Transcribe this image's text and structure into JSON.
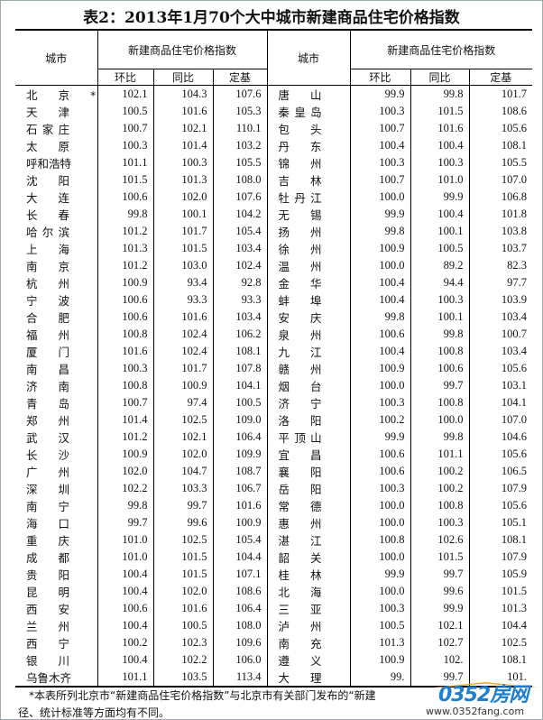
{
  "title": "表2：2013年1月70个大中城市新建商品住宅价格指数",
  "header": {
    "city": "城市",
    "group": "新建商品住宅价格指数",
    "mom": "环比",
    "yoy": "同比",
    "base": "定基"
  },
  "left_rows": [
    [
      "北京*",
      "102.1",
      "104.3",
      "107.6"
    ],
    [
      "天津",
      "100.5",
      "101.6",
      "105.3"
    ],
    [
      "石家庄",
      "100.7",
      "102.1",
      "110.1"
    ],
    [
      "太原",
      "100.3",
      "101.4",
      "103.2"
    ],
    [
      "呼和浩特",
      "101.1",
      "100.3",
      "105.5"
    ],
    [
      "沈阳",
      "101.5",
      "101.3",
      "108.0"
    ],
    [
      "大连",
      "100.6",
      "102.0",
      "107.6"
    ],
    [
      "长春",
      "99.8",
      "100.1",
      "104.2"
    ],
    [
      "哈尔滨",
      "101.2",
      "101.7",
      "105.4"
    ],
    [
      "上海",
      "101.3",
      "101.5",
      "103.4"
    ],
    [
      "南京",
      "101.2",
      "103.0",
      "102.4"
    ],
    [
      "杭州",
      "100.9",
      "93.4",
      "92.8"
    ],
    [
      "宁波",
      "100.6",
      "93.3",
      "93.3"
    ],
    [
      "合肥",
      "100.6",
      "101.6",
      "103.4"
    ],
    [
      "福州",
      "100.8",
      "102.4",
      "106.2"
    ],
    [
      "厦门",
      "101.6",
      "102.4",
      "108.1"
    ],
    [
      "南昌",
      "100.3",
      "101.7",
      "107.8"
    ],
    [
      "济南",
      "100.8",
      "100.9",
      "104.1"
    ],
    [
      "青岛",
      "100.7",
      "97.4",
      "100.5"
    ],
    [
      "郑州",
      "101.4",
      "102.5",
      "109.0"
    ],
    [
      "武汉",
      "101.2",
      "102.1",
      "106.4"
    ],
    [
      "长沙",
      "100.9",
      "102.0",
      "109.9"
    ],
    [
      "广州",
      "102.0",
      "104.7",
      "108.7"
    ],
    [
      "深圳",
      "102.2",
      "103.3",
      "106.7"
    ],
    [
      "南宁",
      "99.8",
      "99.7",
      "101.6"
    ],
    [
      "海口",
      "99.7",
      "99.6",
      "100.9"
    ],
    [
      "重庆",
      "101.0",
      "102.5",
      "105.4"
    ],
    [
      "成都",
      "101.0",
      "101.5",
      "104.4"
    ],
    [
      "贵阳",
      "100.4",
      "101.5",
      "107.1"
    ],
    [
      "昆明",
      "100.4",
      "102.0",
      "108.6"
    ],
    [
      "西安",
      "100.6",
      "101.6",
      "106.4"
    ],
    [
      "兰州",
      "100.4",
      "100.5",
      "108.0"
    ],
    [
      "西宁",
      "100.2",
      "102.3",
      "109.6"
    ],
    [
      "银川",
      "100.4",
      "102.2",
      "106.0"
    ],
    [
      "乌鲁木齐",
      "101.1",
      "103.5",
      "113.4"
    ]
  ],
  "right_rows": [
    [
      "唐山",
      "99.9",
      "99.8",
      "101.7"
    ],
    [
      "秦皇岛",
      "100.3",
      "101.5",
      "108.6"
    ],
    [
      "包头",
      "100.7",
      "101.6",
      "105.6"
    ],
    [
      "丹东",
      "100.4",
      "100.4",
      "108.1"
    ],
    [
      "锦州",
      "100.3",
      "100.3",
      "105.5"
    ],
    [
      "吉林",
      "100.7",
      "101.0",
      "107.0"
    ],
    [
      "牡丹江",
      "100.0",
      "99.9",
      "106.8"
    ],
    [
      "无锡",
      "99.9",
      "100.4",
      "101.8"
    ],
    [
      "扬州",
      "99.8",
      "100.1",
      "103.8"
    ],
    [
      "徐州",
      "100.9",
      "100.5",
      "103.7"
    ],
    [
      "温州",
      "100.0",
      "89.2",
      "82.3"
    ],
    [
      "金华",
      "100.4",
      "94.4",
      "97.7"
    ],
    [
      "蚌埠",
      "100.4",
      "100.3",
      "103.9"
    ],
    [
      "安庆",
      "99.8",
      "100.1",
      "103.4"
    ],
    [
      "泉州",
      "100.6",
      "99.8",
      "100.7"
    ],
    [
      "九江",
      "100.4",
      "100.8",
      "103.4"
    ],
    [
      "赣州",
      "100.9",
      "100.6",
      "105.6"
    ],
    [
      "烟台",
      "100.0",
      "99.7",
      "103.1"
    ],
    [
      "济宁",
      "100.3",
      "100.8",
      "104.1"
    ],
    [
      "洛阳",
      "100.2",
      "100.0",
      "107.0"
    ],
    [
      "平顶山",
      "99.9",
      "99.8",
      "104.6"
    ],
    [
      "宜昌",
      "100.6",
      "101.1",
      "105.6"
    ],
    [
      "襄阳",
      "100.6",
      "100.2",
      "106.5"
    ],
    [
      "岳阳",
      "100.3",
      "100.2",
      "107.9"
    ],
    [
      "常德",
      "100.0",
      "100.8",
      "105.6"
    ],
    [
      "惠州",
      "100.0",
      "100.3",
      "105.1"
    ],
    [
      "湛江",
      "100.8",
      "102.6",
      "108.1"
    ],
    [
      "韶关",
      "100.0",
      "101.5",
      "107.9"
    ],
    [
      "桂林",
      "99.9",
      "99.7",
      "105.9"
    ],
    [
      "北海",
      "100.0",
      "99.6",
      "101.5"
    ],
    [
      "三亚",
      "100.3",
      "99.9",
      "101.3"
    ],
    [
      "泸州",
      "100.5",
      "102.1",
      "104.4"
    ],
    [
      "南充",
      "101.3",
      "102.7",
      "102.5"
    ],
    [
      "遵义",
      "100.9",
      "102.",
      "108.1"
    ],
    [
      "大理",
      "99.",
      "99.7",
      "101."
    ]
  ],
  "footnote": {
    "line1": "*本表所列北京市“新建商品住宅价格指数”与北京市有关部门发布的“新建",
    "line2": "径、统计标准等方面均有不同。"
  },
  "watermark": {
    "logo_text": "0352房网",
    "url": "www.0352fang.com",
    "colors": {
      "blue": "#1e7fd0",
      "orange": "#f5a020"
    }
  }
}
